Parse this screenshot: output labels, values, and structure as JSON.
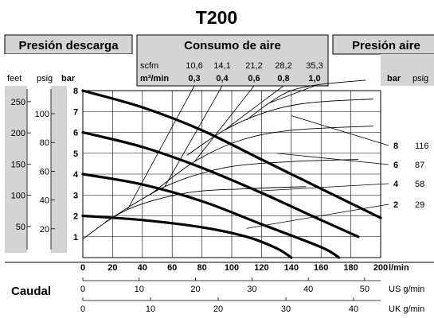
{
  "title": "T200",
  "header_left": "Presión descarga",
  "header_mid": "Consumo de aire",
  "header_right": "Presión aire",
  "left_units": {
    "feet": "feet",
    "psig": "psig",
    "bar": "bar"
  },
  "right_units": {
    "bar": "bar",
    "psig": "psig"
  },
  "air_consumption": {
    "scfm_label": "scfm",
    "m3_label": "m³/min",
    "scfm": [
      "10,6",
      "14,1",
      "21,2",
      "28,2",
      "35,3"
    ],
    "m3min": [
      "0,3",
      "0,4",
      "0,6",
      "0,8",
      "1,0"
    ]
  },
  "caudal_label": "Caudal",
  "flow_scales": [
    {
      "unit": "l/min",
      "ticks": [
        "0",
        "20",
        "40",
        "60",
        "80",
        "100",
        "120",
        "140",
        "160",
        "180",
        "200"
      ]
    },
    {
      "unit": "US g/min",
      "ticks": [
        "0",
        "10",
        "20",
        "30",
        "40",
        "50",
        "60"
      ]
    },
    {
      "unit": "UK g/min",
      "ticks": [
        "0",
        "10",
        "20",
        "30",
        "40"
      ]
    }
  ],
  "left_axes": {
    "bar_ticks": [
      "1",
      "2",
      "3",
      "4",
      "5",
      "6",
      "7",
      "8"
    ],
    "psig_ticks": [
      "20",
      "40",
      "60",
      "80",
      "100"
    ],
    "feet_ticks": [
      "50",
      "100",
      "150",
      "200",
      "250"
    ]
  },
  "air_pressure_labels": [
    {
      "bar": "8",
      "psig": "116"
    },
    {
      "bar": "6",
      "psig": "87"
    },
    {
      "bar": "4",
      "psig": "58"
    },
    {
      "bar": "2",
      "psig": "29"
    }
  ],
  "chart_data": {
    "type": "line",
    "title": "T200",
    "xlabel": "Caudal (l/min)",
    "ylabel": "Presión descarga (bar)",
    "xlim": [
      0,
      200
    ],
    "ylim": [
      0,
      8
    ],
    "grid": true,
    "series": [
      {
        "name": "8 bar",
        "x": [
          0,
          40,
          80,
          120,
          160,
          200
        ],
        "y": [
          8.0,
          7.2,
          6.1,
          4.7,
          3.3,
          1.9
        ]
      },
      {
        "name": "6 bar",
        "x": [
          0,
          40,
          80,
          120,
          160,
          185
        ],
        "y": [
          6.0,
          5.3,
          4.3,
          3.1,
          1.8,
          1.0
        ]
      },
      {
        "name": "4 bar",
        "x": [
          0,
          40,
          80,
          120,
          160,
          172
        ],
        "y": [
          4.0,
          3.5,
          2.7,
          1.6,
          0.5,
          0.0
        ]
      },
      {
        "name": "2 bar",
        "x": [
          0,
          40,
          80,
          110,
          130,
          140
        ],
        "y": [
          2.0,
          1.8,
          1.45,
          1.0,
          0.45,
          0.0
        ]
      }
    ],
    "air_consumption_curves": [
      {
        "m3min": "0,3",
        "x": [
          0,
          30,
          70,
          110,
          150
        ],
        "y": [
          0.9,
          2.3,
          3.1,
          3.3,
          3.4
        ]
      },
      {
        "m3min": "0,4",
        "x": [
          15,
          55,
          95,
          140,
          185
        ],
        "y": [
          1.7,
          3.4,
          4.3,
          4.6,
          4.7
        ]
      },
      {
        "m3min": "0,6",
        "x": [
          45,
          75,
          105,
          140,
          195
        ],
        "y": [
          3.0,
          4.6,
          5.6,
          6.1,
          6.3
        ]
      },
      {
        "m3min": "0,8",
        "x": [
          70,
          95,
          120,
          150,
          195
        ],
        "y": [
          4.9,
          6.1,
          6.9,
          7.4,
          7.6
        ]
      },
      {
        "m3min": "1,0",
        "x": [
          110,
          125,
          140,
          160,
          190
        ],
        "y": [
          6.6,
          7.4,
          8.0,
          8.3,
          8.5
        ]
      }
    ]
  }
}
